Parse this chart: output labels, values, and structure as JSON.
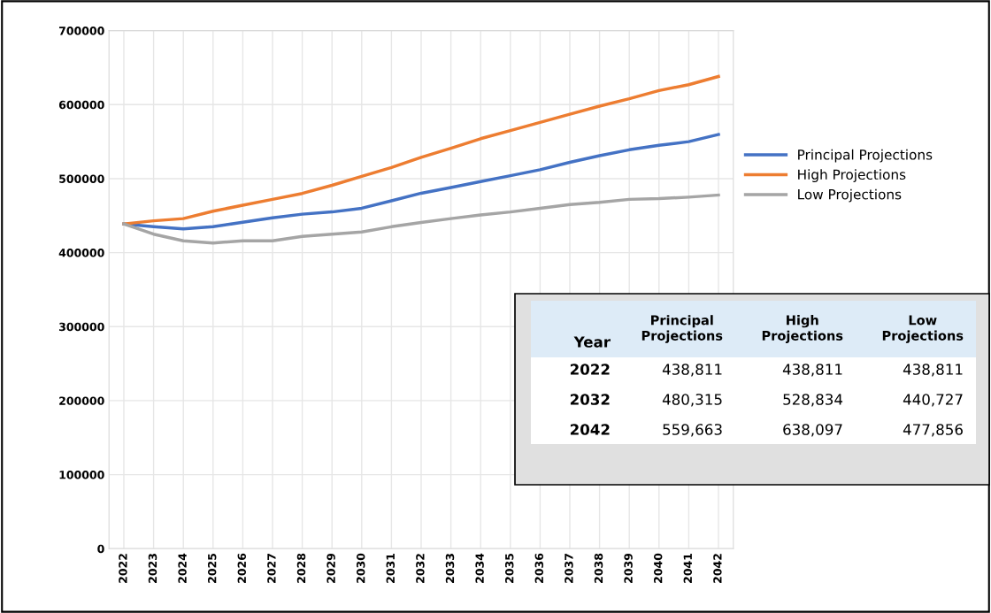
{
  "chart_data": {
    "type": "line",
    "categories": [
      "2022",
      "2023",
      "2024",
      "2025",
      "2026",
      "2027",
      "2028",
      "2029",
      "2030",
      "2031",
      "2032",
      "2033",
      "2034",
      "2035",
      "2036",
      "2037",
      "2038",
      "2039",
      "2040",
      "2041",
      "2042"
    ],
    "series": [
      {
        "name": "Principal Projections",
        "color": "#4472c4",
        "values": [
          438811,
          435000,
          432000,
          435000,
          441000,
          447000,
          452000,
          455000,
          460000,
          470000,
          480315,
          488000,
          496000,
          504000,
          512000,
          522000,
          531000,
          539000,
          545000,
          550000,
          559663
        ]
      },
      {
        "name": "High Projections",
        "color": "#ed7d31",
        "values": [
          438811,
          443000,
          446000,
          456000,
          464000,
          472000,
          480000,
          491000,
          503000,
          515000,
          528834,
          541000,
          554000,
          565000,
          576000,
          587000,
          598000,
          608000,
          619000,
          627000,
          638097
        ]
      },
      {
        "name": "Low Projections",
        "color": "#a5a5a5",
        "values": [
          438811,
          425000,
          416000,
          413000,
          416000,
          416000,
          422000,
          425000,
          428000,
          435000,
          440727,
          446000,
          451000,
          455000,
          460000,
          465000,
          468000,
          472000,
          473000,
          475000,
          477856
        ]
      }
    ],
    "annotations": [
      "Year",
      "2022",
      "438,811",
      "438,811",
      "438,811",
      "2032",
      "480,315",
      "528,834",
      "440,727",
      "2042",
      "559,663",
      "638,097",
      "477,856"
    ],
    "ylim": [
      0,
      700000
    ],
    "yticks": [
      0,
      100000,
      200000,
      300000,
      400000,
      500000,
      600000,
      700000
    ],
    "grid": true,
    "legend": "right",
    "marker": "none",
    "line_style": "solid"
  }
}
